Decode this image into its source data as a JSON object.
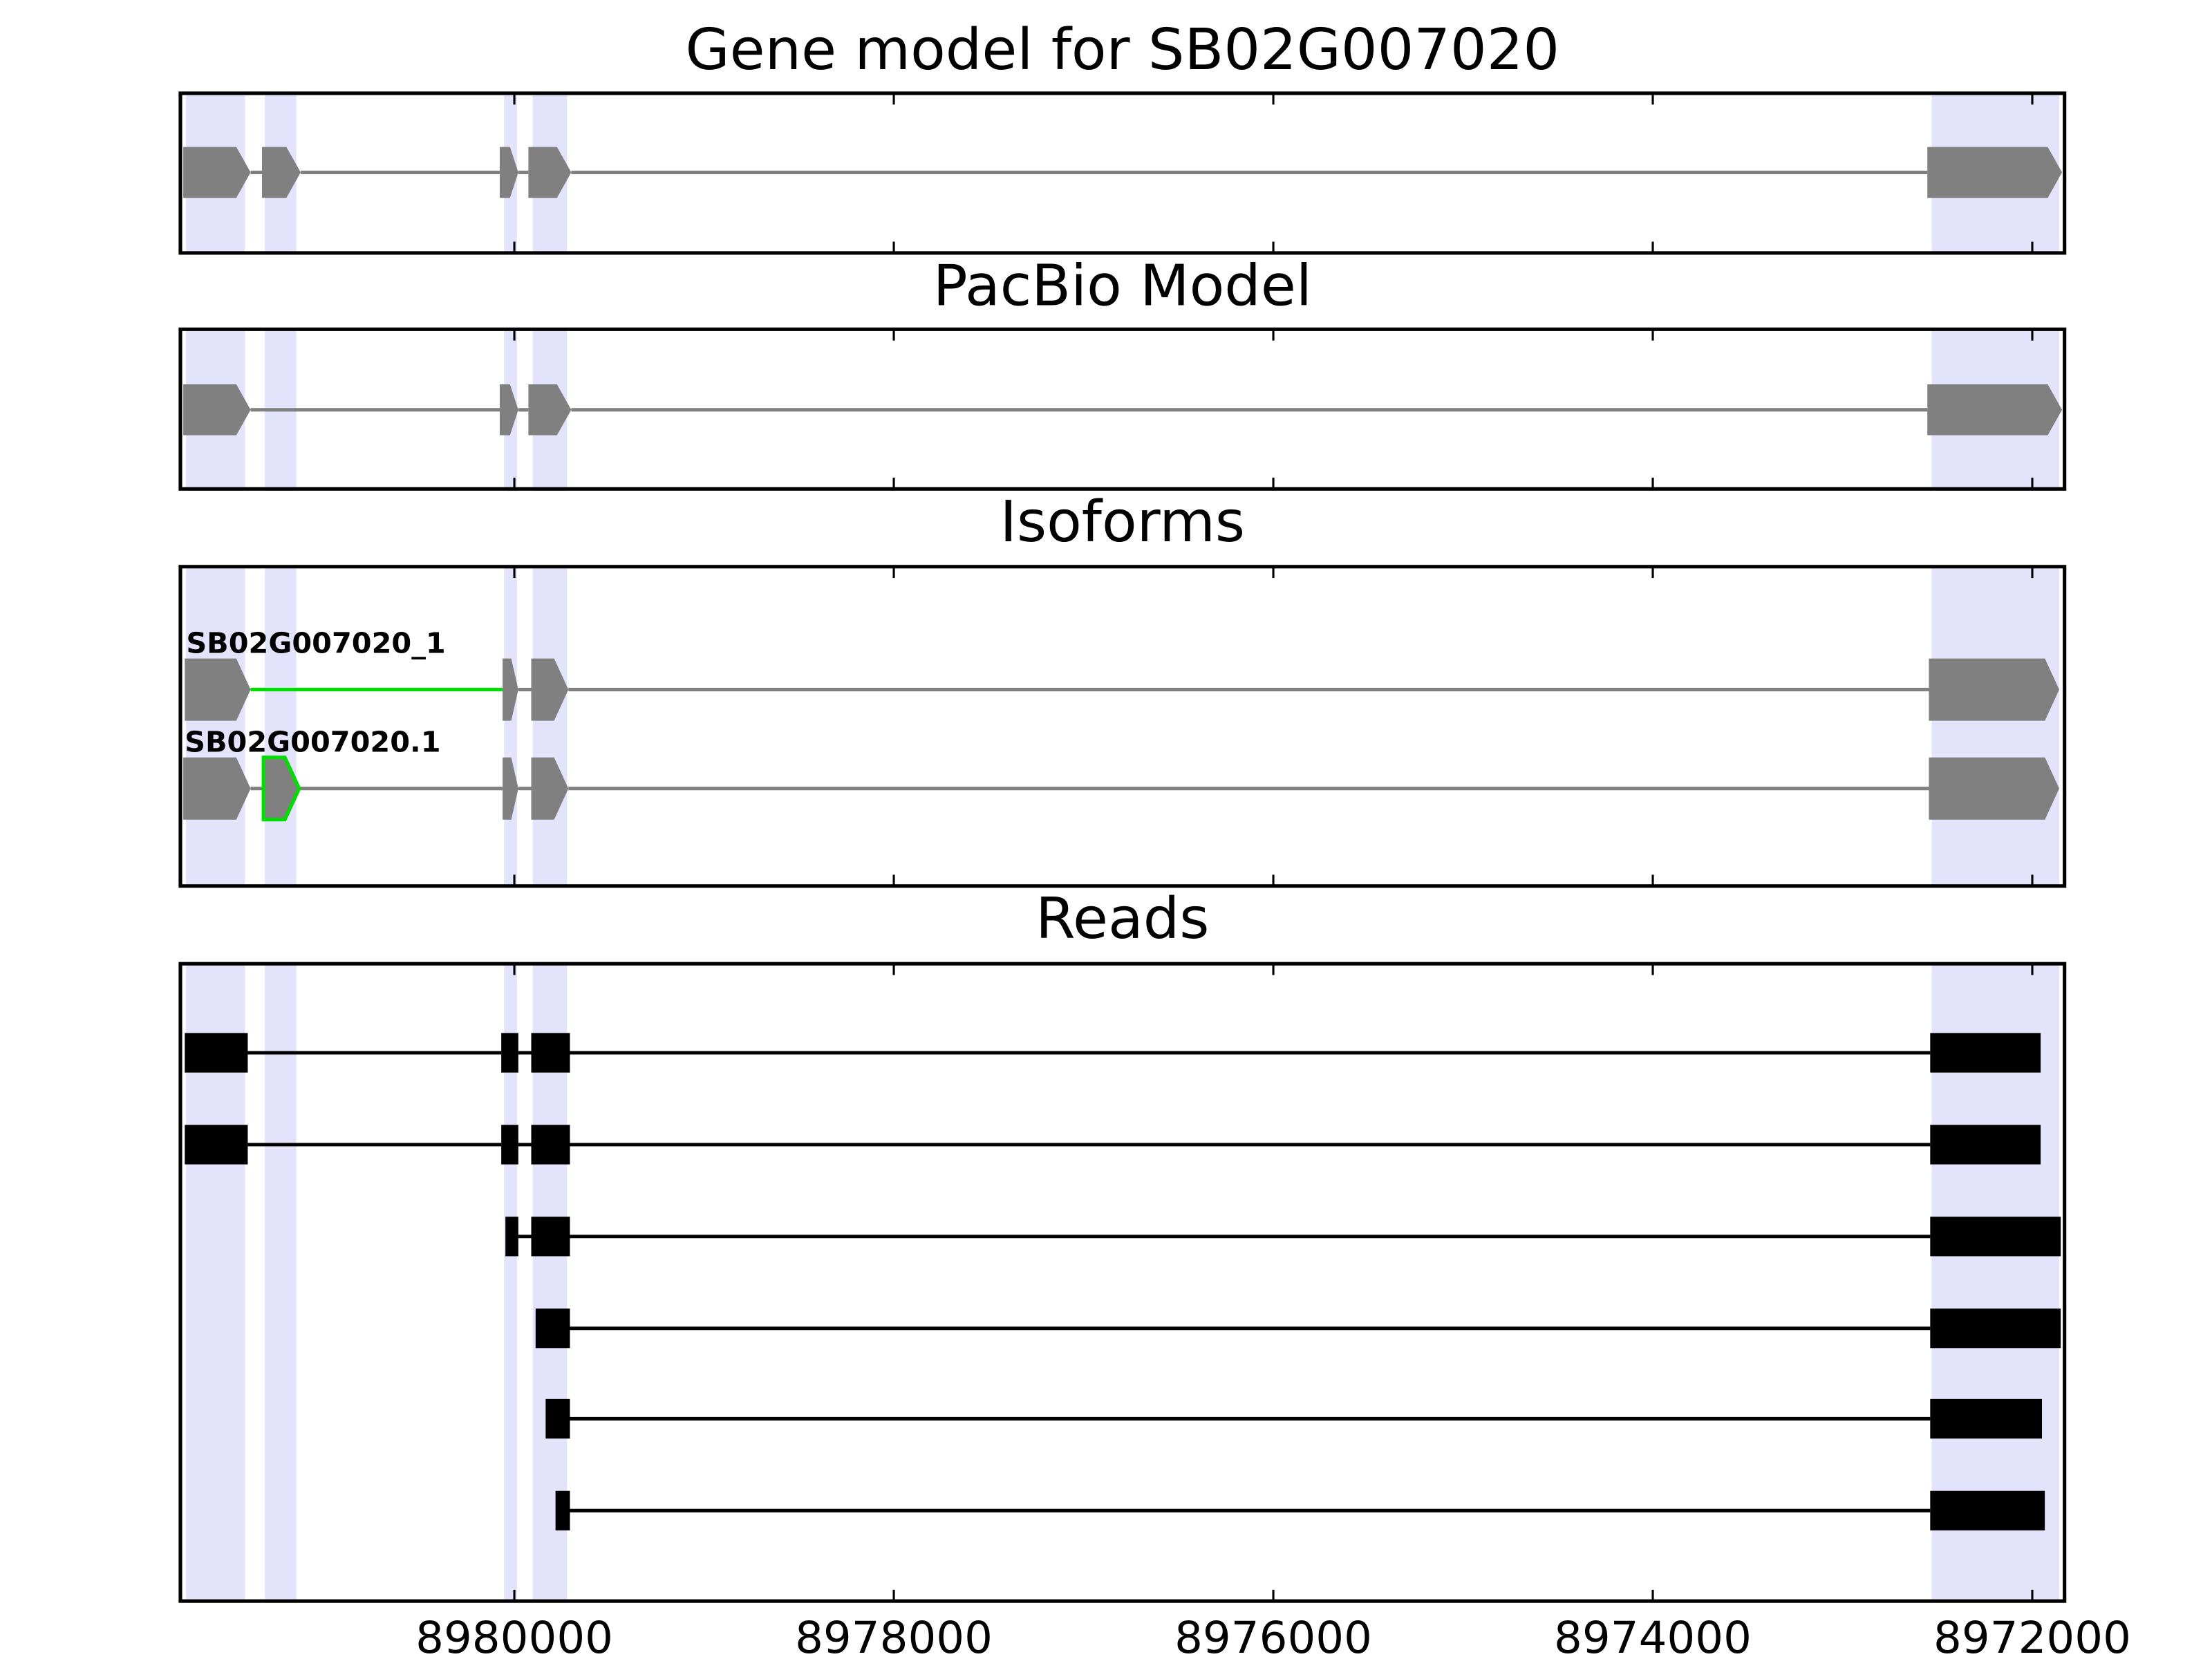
{
  "chart_data": [
    {
      "type": "gene-track",
      "title": "Gene model for SB02G007020",
      "xlim": [
        8981760,
        8971830
      ],
      "xticks": [
        8980000,
        8978000,
        8976000,
        8974000,
        8972000
      ],
      "tick_labels": false,
      "highlights": [
        [
          8981730,
          8981420
        ],
        [
          8981315,
          8981149
        ],
        [
          8980054,
          8979986
        ],
        [
          8979903,
          8979722
        ],
        [
          8972530,
          8971858
        ]
      ],
      "highlight_color": "#e3e3fb",
      "shape": "arrow",
      "color": "#808080",
      "line_color": "#808080",
      "transcripts": [
        {
          "exons": [
            [
              8981745,
              8981390
            ],
            [
              8981330,
              8981126
            ],
            [
              8980077,
              8979979
            ],
            [
              8979926,
              8979700
            ],
            [
              8972553,
              8971843
            ]
          ]
        }
      ]
    },
    {
      "type": "gene-track",
      "title": "PacBio Model",
      "xlim": [
        8981760,
        8971830
      ],
      "xticks": [
        8980000,
        8978000,
        8976000,
        8974000,
        8972000
      ],
      "tick_labels": false,
      "highlights": [
        [
          8981730,
          8981420
        ],
        [
          8981315,
          8981149
        ],
        [
          8980054,
          8979986
        ],
        [
          8979903,
          8979722
        ],
        [
          8972530,
          8971858
        ]
      ],
      "highlight_color": "#e3e3fb",
      "shape": "arrow",
      "color": "#808080",
      "line_color": "#808080",
      "transcripts": [
        {
          "exons": [
            [
              8981745,
              8981390
            ],
            [
              8980077,
              8979979
            ],
            [
              8979926,
              8979700
            ],
            [
              8972553,
              8971843
            ]
          ]
        }
      ]
    },
    {
      "type": "gene-track",
      "title": "Isoforms",
      "xlim": [
        8981760,
        8971830
      ],
      "xticks": [
        8980000,
        8978000,
        8976000,
        8974000,
        8972000
      ],
      "tick_labels": false,
      "highlights": [
        [
          8981730,
          8981420
        ],
        [
          8981315,
          8981149
        ],
        [
          8980054,
          8979986
        ],
        [
          8979903,
          8979722
        ],
        [
          8972530,
          8971858
        ]
      ],
      "highlight_color": "#e3e3fb",
      "shape": "arrow",
      "color": "#808080",
      "line_color": "#808080",
      "accent_color": "#00dd00",
      "transcripts": [
        {
          "name": "SB02G007020_1",
          "exons": [
            [
              8981737,
              8981390
            ],
            [
              8980062,
              8979979
            ],
            [
              8979911,
              8979715
            ],
            [
              8972545,
              8971858
            ]
          ],
          "accent_introns": [
            0
          ]
        },
        {
          "name": "SB02G007020.1",
          "exons": [
            [
              8981745,
              8981390
            ],
            [
              8981322,
              8981134
            ],
            [
              8980062,
              8979979
            ],
            [
              8979911,
              8979715
            ],
            [
              8972545,
              8971858
            ]
          ],
          "accent_exons": [
            1
          ]
        }
      ]
    },
    {
      "type": "gene-track",
      "title": "Reads",
      "xlim": [
        8981760,
        8971830
      ],
      "xticks": [
        8980000,
        8978000,
        8976000,
        8974000,
        8972000
      ],
      "tick_labels": true,
      "highlights": [
        [
          8981730,
          8981420
        ],
        [
          8981315,
          8981149
        ],
        [
          8980054,
          8979986
        ],
        [
          8979903,
          8979722
        ],
        [
          8972530,
          8971858
        ]
      ],
      "highlight_color": "#e3e3fb",
      "shape": "box",
      "color": "#000000",
      "line_color": "#000000",
      "transcripts": [
        {
          "exons": [
            [
              8981737,
              8981405
            ],
            [
              8980069,
              8979979
            ],
            [
              8979911,
              8979707
            ],
            [
              8972538,
              8971956
            ]
          ]
        },
        {
          "exons": [
            [
              8981737,
              8981405
            ],
            [
              8980069,
              8979979
            ],
            [
              8979911,
              8979707
            ],
            [
              8972538,
              8971956
            ]
          ]
        },
        {
          "exons": [
            [
              8980047,
              8979979
            ],
            [
              8979911,
              8979707
            ],
            [
              8972538,
              8971850
            ]
          ]
        },
        {
          "exons": [
            [
              8979888,
              8979707
            ],
            [
              8972538,
              8971850
            ]
          ]
        },
        {
          "exons": [
            [
              8979835,
              8979707
            ],
            [
              8972538,
              8971949
            ]
          ]
        },
        {
          "exons": [
            [
              8979783,
              8979707
            ],
            [
              8972538,
              8971934
            ]
          ]
        }
      ]
    }
  ]
}
